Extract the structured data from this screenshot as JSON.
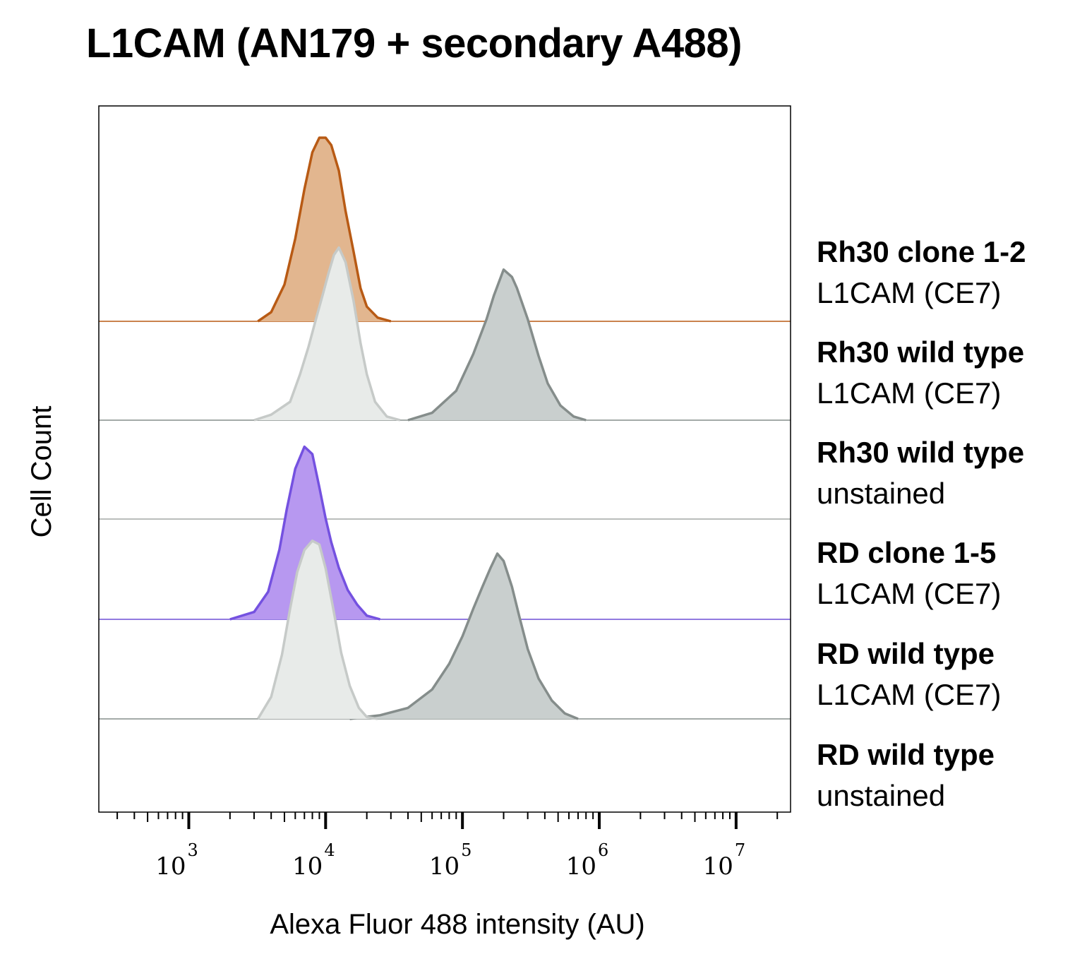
{
  "chart_data": {
    "type": "area",
    "title": "L1CAM (AN179 + secondary A488)",
    "xlabel": "Alexa Fluor 488 intensity (AU)",
    "ylabel": "Cell Count",
    "xscale": "log",
    "xlim": [
      220,
      25000000
    ],
    "x_ticks": [
      {
        "exp": "3"
      },
      {
        "exp": "4"
      },
      {
        "exp": "5"
      },
      {
        "exp": "6"
      },
      {
        "exp": "7"
      }
    ],
    "grid": false,
    "legend": "right, one label per stacked row",
    "rows": [
      {
        "name": "Rh30 clone 1-2",
        "sub": "L1CAM (CE7)"
      },
      {
        "name": "Rh30 wild type",
        "sub": "L1CAM (CE7)"
      },
      {
        "name": "Rh30 wild type",
        "sub": "unstained"
      },
      {
        "name": "RD clone 1-5",
        "sub": "L1CAM (CE7)"
      },
      {
        "name": "RD wild type",
        "sub": "L1CAM (CE7)"
      },
      {
        "name": "RD wild type",
        "sub": "unstained"
      }
    ],
    "series": [
      {
        "row": 0,
        "fill": "#e2b68f",
        "stroke": "#b85a14",
        "baseline_color": "#b85a14",
        "points": [
          [
            3200,
            0
          ],
          [
            4000,
            0.05
          ],
          [
            5000,
            0.2
          ],
          [
            6000,
            0.45
          ],
          [
            7000,
            0.72
          ],
          [
            8000,
            0.92
          ],
          [
            9000,
            1.0
          ],
          [
            10000,
            1.0
          ],
          [
            11000,
            0.96
          ],
          [
            12500,
            0.82
          ],
          [
            14000,
            0.6
          ],
          [
            16000,
            0.38
          ],
          [
            18000,
            0.18
          ],
          [
            20000,
            0.08
          ],
          [
            24000,
            0.02
          ],
          [
            30000,
            0
          ]
        ]
      },
      {
        "row": 1,
        "fill": "#c9cfce",
        "stroke": "#858d8b",
        "baseline_color": "#858d8b",
        "points": [
          [
            40000,
            0
          ],
          [
            60000,
            0.04
          ],
          [
            90000,
            0.16
          ],
          [
            120000,
            0.36
          ],
          [
            150000,
            0.55
          ],
          [
            170000,
            0.68
          ],
          [
            200000,
            0.82
          ],
          [
            230000,
            0.78
          ],
          [
            250000,
            0.72
          ],
          [
            300000,
            0.55
          ],
          [
            360000,
            0.35
          ],
          [
            420000,
            0.2
          ],
          [
            520000,
            0.08
          ],
          [
            650000,
            0.02
          ],
          [
            800000,
            0
          ]
        ]
      },
      {
        "row": 1,
        "fill": "#e8ebe9",
        "stroke": "#c6cac8",
        "baseline_color": "#a3a8a6",
        "points": [
          [
            3000,
            0
          ],
          [
            4000,
            0.03
          ],
          [
            5500,
            0.1
          ],
          [
            6500,
            0.25
          ],
          [
            7500,
            0.4
          ],
          [
            8500,
            0.55
          ],
          [
            9500,
            0.68
          ],
          [
            10500,
            0.8
          ],
          [
            11500,
            0.9
          ],
          [
            12500,
            0.94
          ],
          [
            14000,
            0.86
          ],
          [
            16000,
            0.65
          ],
          [
            18000,
            0.42
          ],
          [
            20000,
            0.25
          ],
          [
            23000,
            0.1
          ],
          [
            28000,
            0.02
          ],
          [
            35000,
            0
          ]
        ]
      },
      {
        "row": 3,
        "fill": "#b798f0",
        "stroke": "#7451e0",
        "baseline_color": "#6f4fd6",
        "points": [
          [
            2000,
            0
          ],
          [
            3000,
            0.04
          ],
          [
            3800,
            0.15
          ],
          [
            4600,
            0.38
          ],
          [
            5200,
            0.6
          ],
          [
            6000,
            0.82
          ],
          [
            7000,
            0.94
          ],
          [
            8000,
            0.9
          ],
          [
            9000,
            0.72
          ],
          [
            10000,
            0.55
          ],
          [
            11000,
            0.42
          ],
          [
            12500,
            0.28
          ],
          [
            14500,
            0.16
          ],
          [
            17000,
            0.08
          ],
          [
            20000,
            0.02
          ],
          [
            25000,
            0
          ]
        ]
      },
      {
        "row": 4,
        "fill": "#c9cfce",
        "stroke": "#858d8b",
        "baseline_color": "#858d8b",
        "points": [
          [
            15000,
            0
          ],
          [
            25000,
            0.02
          ],
          [
            40000,
            0.06
          ],
          [
            60000,
            0.16
          ],
          [
            80000,
            0.3
          ],
          [
            100000,
            0.45
          ],
          [
            120000,
            0.6
          ],
          [
            140000,
            0.72
          ],
          [
            160000,
            0.82
          ],
          [
            180000,
            0.9
          ],
          [
            200000,
            0.86
          ],
          [
            230000,
            0.72
          ],
          [
            260000,
            0.56
          ],
          [
            300000,
            0.38
          ],
          [
            360000,
            0.22
          ],
          [
            450000,
            0.1
          ],
          [
            560000,
            0.03
          ],
          [
            700000,
            0
          ]
        ]
      },
      {
        "row": 4,
        "fill": "#e8ebe9",
        "stroke": "#c6cac8",
        "baseline_color": "#a3a8a6",
        "points": [
          [
            3200,
            0
          ],
          [
            4000,
            0.12
          ],
          [
            4800,
            0.35
          ],
          [
            5500,
            0.6
          ],
          [
            6200,
            0.8
          ],
          [
            7000,
            0.92
          ],
          [
            8000,
            0.97
          ],
          [
            9000,
            0.95
          ],
          [
            10000,
            0.82
          ],
          [
            11500,
            0.58
          ],
          [
            13000,
            0.36
          ],
          [
            15000,
            0.18
          ],
          [
            17500,
            0.06
          ],
          [
            20000,
            0.01
          ],
          [
            24000,
            0
          ]
        ]
      }
    ]
  }
}
